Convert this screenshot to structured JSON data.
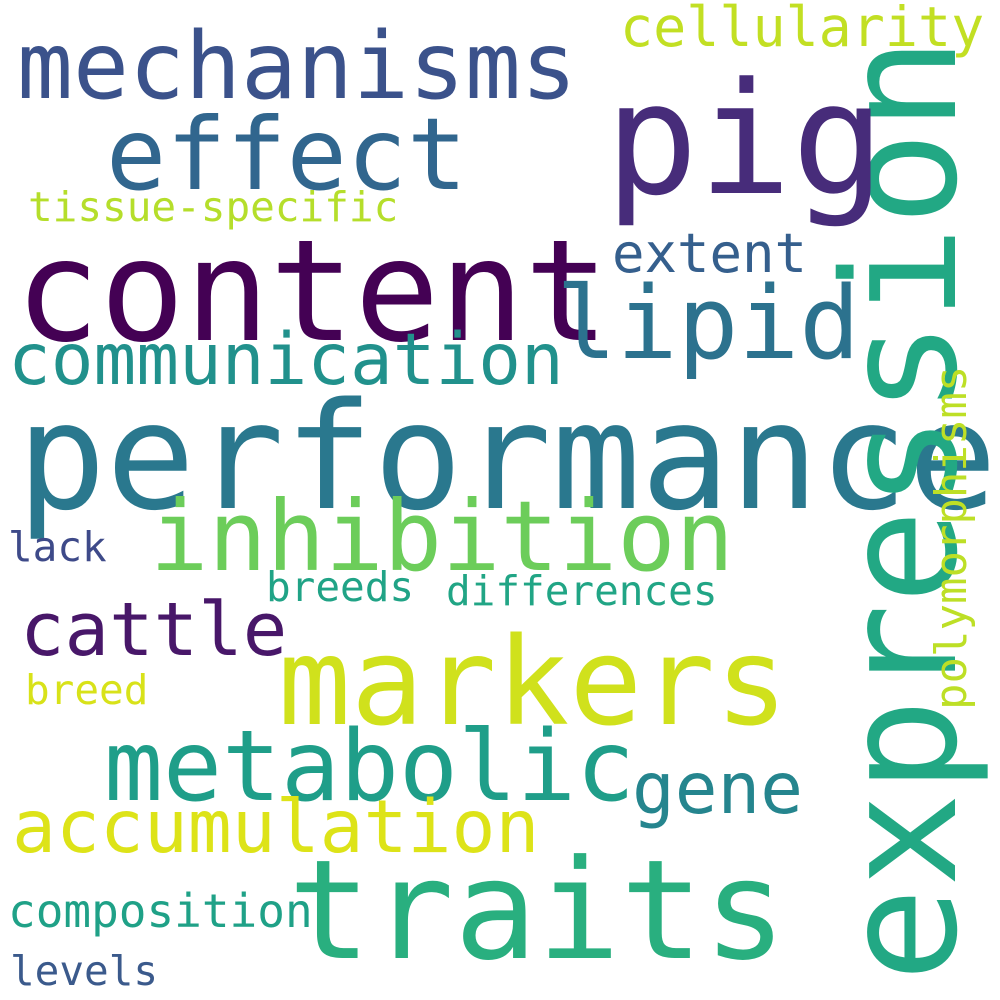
{
  "words": {
    "content": {
      "text": "content",
      "color": "#440154"
    },
    "performance": {
      "text": "performance",
      "color": "#2a788e"
    },
    "expression": {
      "text": "expression",
      "color": "#22a884"
    },
    "mechanisms": {
      "text": "mechanisms",
      "color": "#3b528b"
    },
    "pig": {
      "text": "pig",
      "color": "#472c7a"
    },
    "effect": {
      "text": "effect",
      "color": "#31668e"
    },
    "markers": {
      "text": "markers",
      "color": "#d0e11c"
    },
    "traits": {
      "text": "traits",
      "color": "#29af7f"
    },
    "inhibition": {
      "text": "inhibition",
      "color": "#6ccd5a"
    },
    "lipid": {
      "text": "lipid",
      "color": "#2c728e"
    },
    "metabolic": {
      "text": "metabolic",
      "color": "#1f9e89"
    },
    "communication": {
      "text": "communication",
      "color": "#21918c"
    },
    "accumulation": {
      "text": "accumulation",
      "color": "#dde318"
    },
    "cattle": {
      "text": "cattle",
      "color": "#481769"
    },
    "gene": {
      "text": "gene",
      "color": "#25858e"
    },
    "cellularity": {
      "text": "cellularity",
      "color": "#c2df23"
    },
    "extent": {
      "text": "extent",
      "color": "#355f8d"
    },
    "tissue_specific": {
      "text": "tissue-specific",
      "color": "#b5de2b"
    },
    "polymorphisms": {
      "text": "polymorphisms",
      "color": "#bddf26"
    },
    "differences": {
      "text": "differences",
      "color": "#21a585"
    },
    "breeds": {
      "text": "breeds",
      "color": "#20a386"
    },
    "lack": {
      "text": "lack",
      "color": "#3e4a89"
    },
    "breed": {
      "text": "breed",
      "color": "#d8e219"
    },
    "composition": {
      "text": "composition",
      "color": "#1fa187"
    },
    "levels": {
      "text": "levels",
      "color": "#3b5a8c"
    }
  }
}
